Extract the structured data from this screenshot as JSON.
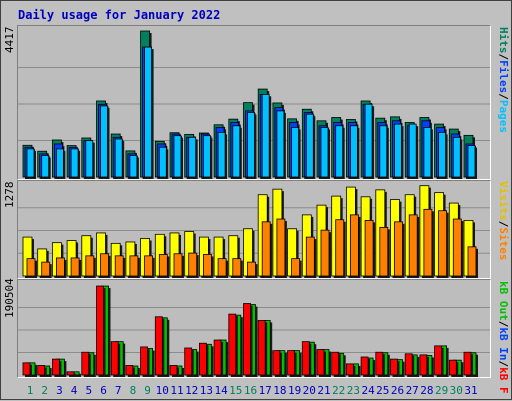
{
  "title": "Daily usage for January 2022",
  "colors": {
    "hits": "#00805c",
    "files": "#0040ff",
    "pages": "#00c0ff",
    "visits": "#ffff00",
    "sites": "#ff8000",
    "kb_in": "#00c000",
    "kb_out": "#ff0000",
    "weekend_label": "#00805c",
    "weekday_label": "#0000c0"
  },
  "legends": {
    "top": {
      "pages": "Pages",
      "files": "Files",
      "hits": "Hits",
      "sep": "/"
    },
    "middle": {
      "sites": "Sites",
      "visits": "Visits",
      "sep": "/"
    },
    "bottom": {
      "kbf": "kB F",
      "kbin": "kB In",
      "kbout": "kB Out",
      "sep": "/"
    }
  },
  "chart_data": [
    {
      "type": "bar",
      "title": "Daily usage for January 2022",
      "ymax_label": "4417",
      "ylim": [
        0,
        4417
      ],
      "categories": [
        "1",
        "2",
        "3",
        "4",
        "5",
        "6",
        "7",
        "8",
        "9",
        "10",
        "11",
        "12",
        "13",
        "14",
        "15",
        "16",
        "17",
        "18",
        "19",
        "20",
        "21",
        "22",
        "23",
        "24",
        "25",
        "26",
        "27",
        "28",
        "29",
        "30",
        "31"
      ],
      "weekend_days": [
        "1",
        "2",
        "8",
        "9",
        "15",
        "16",
        "22",
        "23",
        "29",
        "30"
      ],
      "series": [
        {
          "name": "Hits",
          "values": [
            960,
            780,
            1120,
            950,
            1180,
            2300,
            1300,
            790,
            4417,
            1080,
            1340,
            1290,
            1330,
            1580,
            1750,
            2250,
            2660,
            2240,
            1760,
            2050,
            1700,
            1800,
            1740,
            2300,
            1780,
            1820,
            1650,
            1800,
            1600,
            1450,
            1260
          ]
        },
        {
          "name": "Files",
          "values": [
            900,
            700,
            1000,
            900,
            1100,
            2200,
            1200,
            700,
            3930,
            1000,
            1300,
            1200,
            1300,
            1500,
            1650,
            2000,
            2500,
            2100,
            1650,
            1950,
            1550,
            1650,
            1650,
            2200,
            1650,
            1700,
            1550,
            1700,
            1500,
            1300,
            1000
          ]
        },
        {
          "name": "Pages",
          "values": [
            850,
            650,
            850,
            850,
            1100,
            2150,
            1150,
            650,
            3930,
            900,
            1250,
            1200,
            1250,
            1350,
            1550,
            1950,
            2500,
            2000,
            1500,
            1900,
            1500,
            1550,
            1550,
            2200,
            1550,
            1600,
            1600,
            1500,
            1350,
            1200,
            950
          ]
        }
      ]
    },
    {
      "type": "bar",
      "ymax_label": "1278",
      "ylim": [
        0,
        1278
      ],
      "categories": [
        "1",
        "2",
        "3",
        "4",
        "5",
        "6",
        "7",
        "8",
        "9",
        "10",
        "11",
        "12",
        "13",
        "14",
        "15",
        "16",
        "17",
        "18",
        "19",
        "20",
        "21",
        "22",
        "23",
        "24",
        "25",
        "26",
        "27",
        "28",
        "29",
        "30",
        "31"
      ],
      "series": [
        {
          "name": "Visits",
          "values": [
            560,
            390,
            480,
            510,
            580,
            620,
            470,
            490,
            540,
            600,
            620,
            640,
            560,
            560,
            580,
            680,
            1170,
            1250,
            680,
            880,
            1020,
            1150,
            1280,
            1140,
            1240,
            1100,
            1170,
            1300,
            1200,
            1050,
            800
          ]
        },
        {
          "name": "Sites",
          "values": [
            250,
            200,
            260,
            260,
            290,
            320,
            290,
            290,
            290,
            310,
            320,
            330,
            310,
            250,
            250,
            200,
            780,
            820,
            250,
            560,
            660,
            810,
            880,
            800,
            700,
            780,
            880,
            960,
            940,
            820,
            420
          ]
        }
      ]
    },
    {
      "type": "bar",
      "ymax_label": "190504",
      "ylim": [
        0,
        190504
      ],
      "categories": [
        "1",
        "2",
        "3",
        "4",
        "5",
        "6",
        "7",
        "8",
        "9",
        "10",
        "11",
        "12",
        "13",
        "14",
        "15",
        "16",
        "17",
        "18",
        "19",
        "20",
        "21",
        "22",
        "23",
        "24",
        "25",
        "26",
        "27",
        "28",
        "29",
        "30",
        "31"
      ],
      "series": [
        {
          "name": "kB In",
          "values": [
            23000,
            18000,
            30000,
            6000,
            43000,
            168000,
            63000,
            18000,
            53000,
            110000,
            18000,
            51000,
            60000,
            66000,
            115000,
            135000,
            103000,
            46000,
            46000,
            63000,
            48000,
            43000,
            21000,
            34000,
            43000,
            30000,
            40000,
            38000,
            55000,
            28000,
            43000
          ]
        },
        {
          "name": "kB Out",
          "values": [
            23000,
            17000,
            30000,
            6000,
            42000,
            168000,
            63000,
            17000,
            50000,
            108000,
            17000,
            48000,
            58000,
            66000,
            113000,
            133000,
            103000,
            46000,
            46000,
            62000,
            48000,
            41000,
            21000,
            32000,
            42000,
            29000,
            38000,
            37000,
            55000,
            28000,
            42000
          ]
        }
      ]
    }
  ]
}
